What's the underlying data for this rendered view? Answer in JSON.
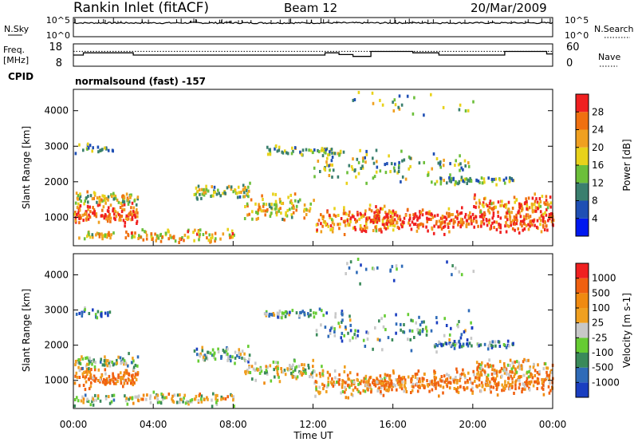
{
  "header": {
    "station": "Rankin Inlet (fitACF)",
    "beam": "Beam 12",
    "date": "20/Mar/2009"
  },
  "chart_data": [
    {
      "type": "line",
      "panel": "noise",
      "left_label": "N.Sky",
      "right_label": "N.Search",
      "left_ticks": [
        "10^5",
        "10^0"
      ],
      "right_ticks": [
        "10^5",
        "10^0"
      ],
      "scale": "log",
      "ylim": [
        1,
        100000
      ],
      "y_approx_log10": 3.6
    },
    {
      "type": "line",
      "panel": "frequency",
      "left_label": "Freq. [MHz]",
      "right_label": "Nave",
      "left_ticks": [
        "18",
        "8"
      ],
      "right_ticks": [
        "60",
        "0"
      ],
      "ylim_left": [
        8,
        18
      ],
      "ylim_right": [
        0,
        60
      ],
      "freq_steps": [
        {
          "t0": 0.0,
          "t1": 0.5,
          "v": 13.0
        },
        {
          "t0": 0.5,
          "t1": 3.0,
          "v": 14.0
        },
        {
          "t0": 3.0,
          "t1": 12.6,
          "v": 13.0
        },
        {
          "t0": 12.6,
          "t1": 13.3,
          "v": 14.0
        },
        {
          "t0": 13.3,
          "t1": 14.0,
          "v": 13.2
        },
        {
          "t0": 14.0,
          "t1": 14.2,
          "v": 12.4
        },
        {
          "t0": 14.2,
          "t1": 14.9,
          "v": 12.4
        },
        {
          "t0": 14.9,
          "t1": 17.0,
          "v": 14.6
        },
        {
          "t0": 17.0,
          "t1": 18.3,
          "v": 14.0
        },
        {
          "t0": 18.3,
          "t1": 21.6,
          "v": 13.0
        },
        {
          "t0": 21.6,
          "t1": 23.7,
          "v": 14.6
        },
        {
          "t0": 23.7,
          "t1": 24.0,
          "v": 13.5
        }
      ],
      "nave_level": 40
    },
    {
      "type": "text",
      "panel": "cpid",
      "label": "CPID",
      "text": "normalsound (fast) -157"
    },
    {
      "type": "heatmap",
      "panel": "power",
      "ylabel": "Slant Range [km]",
      "yticks": [
        1000,
        2000,
        3000,
        4000
      ],
      "ylim": [
        200,
        4600
      ],
      "xlim": [
        0,
        24
      ],
      "colorbar": {
        "label": "Power [dB]",
        "ticks": [
          "4",
          "8",
          "12",
          "16",
          "20",
          "24",
          "28"
        ],
        "colors": [
          "#0018f0",
          "#1f4fb4",
          "#3a7f6e",
          "#6cbf3a",
          "#e8d21a",
          "#f0a020",
          "#f07010",
          "#f02020"
        ]
      }
    },
    {
      "type": "heatmap",
      "panel": "velocity",
      "ylabel": "Slant Range [km]",
      "yticks": [
        1000,
        2000,
        3000,
        4000
      ],
      "ylim": [
        200,
        4600
      ],
      "xlim": [
        0,
        24
      ],
      "xticks": [
        "00:00",
        "04:00",
        "08:00",
        "12:00",
        "16:00",
        "20:00",
        "00:00"
      ],
      "xlabel": "Time UT",
      "colorbar": {
        "label": "Velocity [m s-1]",
        "ticks": [
          "1000",
          "500",
          "100",
          "25",
          "-25",
          "-100",
          "-500",
          "-1000"
        ],
        "colors": [
          "#1a3ec0",
          "#2f6bb8",
          "#3a8a5a",
          "#66cc33",
          "#c8c8c8",
          "#f0a020",
          "#f08a10",
          "#f06010",
          "#f02020"
        ]
      }
    }
  ]
}
